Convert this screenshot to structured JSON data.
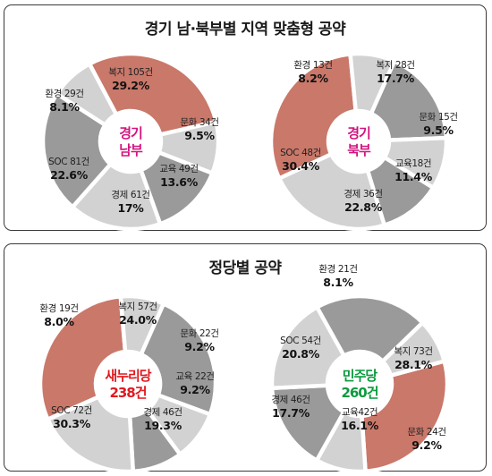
{
  "panels": [
    {
      "title": "경기 남·북부별 지역 맞춤형 공약"
    },
    {
      "title": "정당별 공약"
    }
  ],
  "colors": {
    "light": "#d2d2d2",
    "dark": "#9a9a9a",
    "red": "#c9786a",
    "magenta": "#d4147f",
    "red_text": "#e0181e",
    "green_text": "#0b9a3e"
  },
  "chart_data": [
    {
      "type": "pie",
      "title": "경기 남부",
      "center_label": [
        "경기",
        "남부"
      ],
      "center_color": "magenta",
      "slices": [
        {
          "label": "복지 105건",
          "count": 105,
          "pct": "29.2%",
          "value": 29.2,
          "fill": "red"
        },
        {
          "label": "문화 34건",
          "count": 34,
          "pct": "9.5%",
          "value": 9.5,
          "fill": "light"
        },
        {
          "label": "교육 49건",
          "count": 49,
          "pct": "13.6%",
          "value": 13.6,
          "fill": "dark"
        },
        {
          "label": "경제 61건",
          "count": 61,
          "pct": "17%",
          "value": 17.0,
          "fill": "light"
        },
        {
          "label": "SOC 81건",
          "count": 81,
          "pct": "22.6%",
          "value": 22.6,
          "fill": "dark"
        },
        {
          "label": "환경 29건",
          "count": 29,
          "pct": "8.1%",
          "value": 8.1,
          "fill": "light"
        }
      ]
    },
    {
      "type": "pie",
      "title": "경기 북부",
      "center_label": [
        "경기",
        "북부"
      ],
      "center_color": "magenta",
      "slices": [
        {
          "label": "복지 28건",
          "count": 28,
          "pct": "17.7%",
          "value": 17.7,
          "fill": "dark"
        },
        {
          "label": "문화 15건",
          "count": 15,
          "pct": "9.5%",
          "value": 9.5,
          "fill": "light"
        },
        {
          "label": "교육18건",
          "count": 18,
          "pct": "11.4%",
          "value": 11.4,
          "fill": "dark"
        },
        {
          "label": "경제 36건",
          "count": 36,
          "pct": "22.8%",
          "value": 22.8,
          "fill": "light"
        },
        {
          "label": "SOC 48건",
          "count": 48,
          "pct": "30.4%",
          "value": 30.4,
          "fill": "red"
        },
        {
          "label": "환경 13건",
          "count": 13,
          "pct": "8.2%",
          "value": 8.2,
          "fill": "light"
        }
      ]
    },
    {
      "type": "pie",
      "title": "새누리당",
      "center_label": [
        "새누리당",
        "238건"
      ],
      "center_color": "red_text",
      "slices": [
        {
          "label": "복지 57건",
          "count": 57,
          "pct": "24.0%",
          "value": 24.0,
          "fill": "dark"
        },
        {
          "label": "문화 22건",
          "count": 22,
          "pct": "9.2%",
          "value": 9.2,
          "fill": "light"
        },
        {
          "label": "교육 22건",
          "count": 22,
          "pct": "9.2%",
          "value": 9.2,
          "fill": "dark"
        },
        {
          "label": "경제 46건",
          "count": 46,
          "pct": "19.3%",
          "value": 19.3,
          "fill": "light"
        },
        {
          "label": "SOC 72건",
          "count": 72,
          "pct": "30.3%",
          "value": 30.3,
          "fill": "red"
        },
        {
          "label": "환경 19건",
          "count": 19,
          "pct": "8.0%",
          "value": 8.0,
          "fill": "light"
        }
      ]
    },
    {
      "type": "pie",
      "title": "민주당",
      "center_label": [
        "민주당",
        "260건"
      ],
      "center_color": "green_text",
      "slices": [
        {
          "label": "복지 73건",
          "count": 73,
          "pct": "28.1%",
          "value": 28.1,
          "fill": "red"
        },
        {
          "label": "문화 24건",
          "count": 24,
          "pct": "9.2%",
          "value": 9.2,
          "fill": "light"
        },
        {
          "label": "교육42건",
          "count": 42,
          "pct": "16.1%",
          "value": 16.1,
          "fill": "dark"
        },
        {
          "label": "경제 46건",
          "count": 46,
          "pct": "17.7%",
          "value": 17.7,
          "fill": "light"
        },
        {
          "label": "SOC 54건",
          "count": 54,
          "pct": "20.8%",
          "value": 20.8,
          "fill": "dark"
        },
        {
          "label": "환경 21건",
          "count": 21,
          "pct": "8.1%",
          "value": 8.1,
          "fill": "light"
        }
      ]
    }
  ]
}
